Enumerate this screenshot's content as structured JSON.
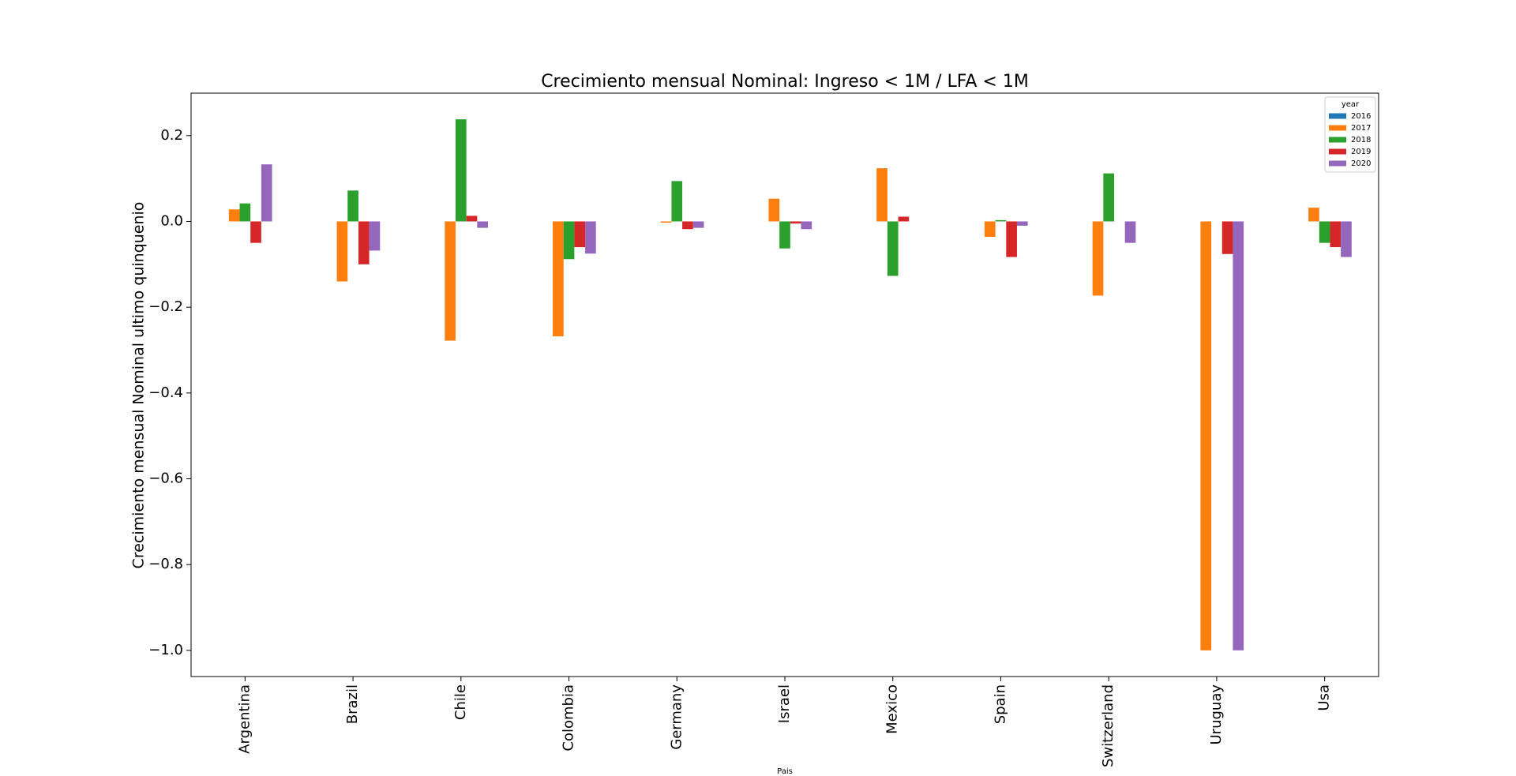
{
  "chart_data": {
    "type": "bar",
    "title": "Crecimiento mensual Nominal: Ingreso < 1M / LFA < 1M",
    "y_label": "Crecimiento mensual Nominal ultimo quinquenio",
    "x_label": "Pais",
    "categories": [
      "Argentina",
      "Brazil",
      "Chile",
      "Colombia",
      "Germany",
      "Israel",
      "Mexico",
      "Spain",
      "Switzerland",
      "Uruguay",
      "Usa"
    ],
    "legend_title": "year",
    "legend_position": "upper right",
    "series": [
      {
        "name": "2016",
        "color": "#1f77b4",
        "values": [
          null,
          null,
          null,
          null,
          null,
          null,
          null,
          null,
          null,
          null,
          null
        ]
      },
      {
        "name": "2017",
        "color": "#ff7f0e",
        "values": [
          0.028,
          -0.14,
          -0.278,
          -0.268,
          -0.003,
          0.053,
          0.124,
          -0.036,
          -0.173,
          -1.0,
          0.032
        ]
      },
      {
        "name": "2018",
        "color": "#2ca02c",
        "values": [
          0.042,
          0.072,
          0.238,
          -0.088,
          0.094,
          -0.063,
          -0.127,
          0.003,
          0.112,
          null,
          -0.05
        ]
      },
      {
        "name": "2019",
        "color": "#d62728",
        "values": [
          -0.05,
          -0.1,
          0.013,
          -0.06,
          -0.018,
          -0.005,
          0.011,
          -0.083,
          null,
          -0.076,
          -0.06
        ]
      },
      {
        "name": "2020",
        "color": "#9467bd",
        "values": [
          0.133,
          -0.068,
          -0.015,
          -0.075,
          -0.015,
          -0.018,
          0.0,
          -0.01,
          -0.05,
          -1.0,
          -0.083
        ]
      }
    ],
    "ylim": [
      -1.061,
      0.299
    ],
    "yticks": [
      0.2,
      {
        "value": 0,
        "label": "0.0"
      },
      {
        "value": -0.2,
        "label": "−0.2"
      },
      {
        "value": -0.4,
        "label": "−0.4"
      },
      {
        "value": -0.6,
        "label": "−0.6"
      },
      {
        "value": -0.8,
        "label": "−0.8"
      },
      {
        "value": -1.0,
        "label": "−1.0"
      }
    ],
    "grid": false
  }
}
